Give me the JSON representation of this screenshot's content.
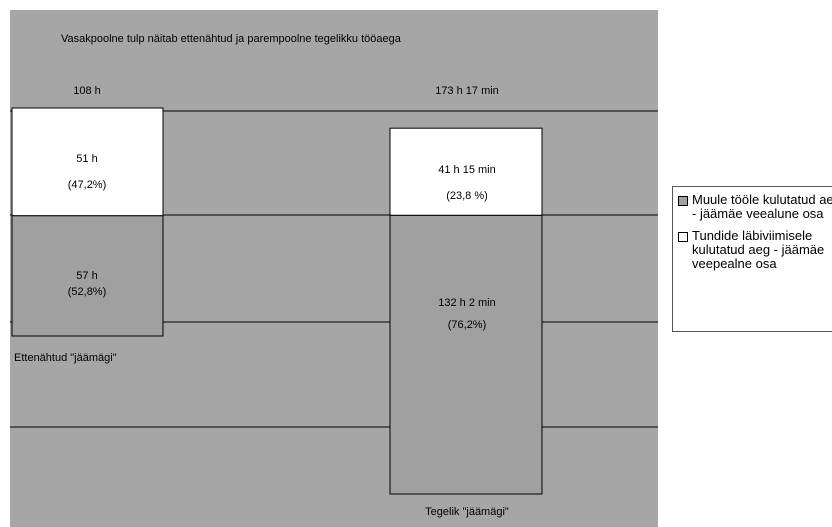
{
  "chart_data": {
    "type": "bar",
    "stacked": true,
    "title": "Vasakpoolne tulp näitab ettenähtud ja parempoolne tegelikku tööaega",
    "categories": [
      "Ettenähtud \"jäämägi\"",
      "Tegelik \"jäämägi\""
    ],
    "totals": [
      "108 h",
      "173 h 17 min"
    ],
    "baseline_hours": 108,
    "series": [
      {
        "name": "Muule tööle kulutatud aeg - jäämäe veealune osa",
        "color": "#a0a0a0",
        "values": [
          57,
          132.03
        ],
        "labels": [
          "57 h",
          "132 h 2 min"
        ],
        "percent_labels": [
          "(52,8%)",
          "(76,2%)"
        ]
      },
      {
        "name": "Tundide läbiviimisele kulutatud aeg - jäämäe veepealne osa",
        "color": "#ffffff",
        "values": [
          51,
          41.25
        ],
        "labels": [
          "51 h",
          "41 h 15 min"
        ],
        "percent_labels": [
          "(47,2%)",
          "(23,8 %)"
        ]
      }
    ],
    "legend_position": "right",
    "grid": true
  }
}
